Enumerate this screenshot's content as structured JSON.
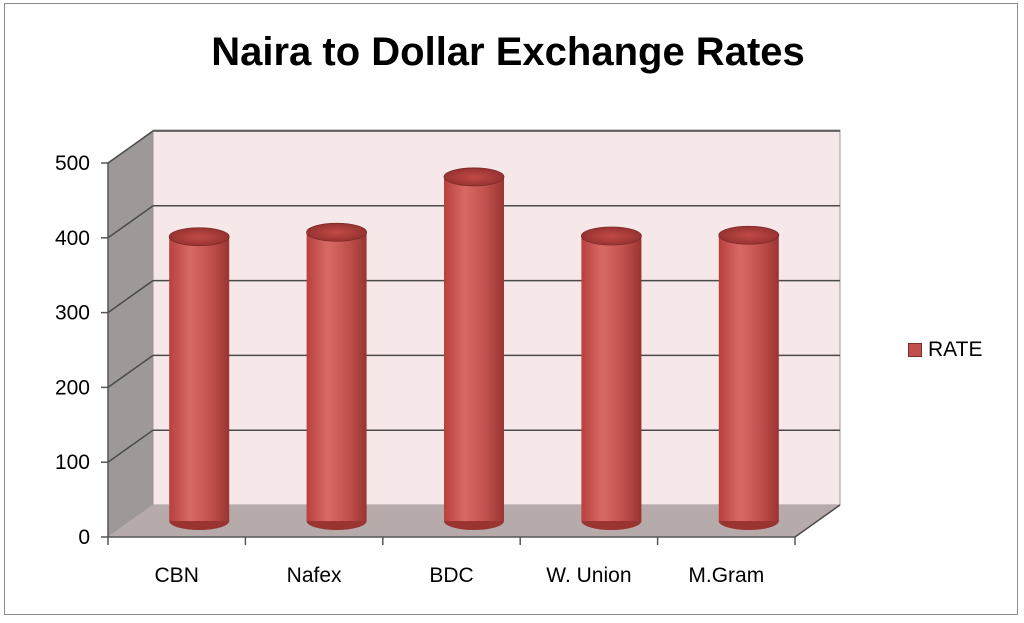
{
  "chart_data": {
    "type": "bar",
    "subtype": "3d-cylinder",
    "title": "Naira to Dollar Exchange Rates",
    "xlabel": "",
    "ylabel": "",
    "categories": [
      "CBN",
      "Nafex",
      "BDC",
      "W. Union",
      "M.Gram"
    ],
    "series": [
      {
        "name": "RATE",
        "values": [
          380,
          386,
          460,
          381,
          382
        ]
      }
    ],
    "ylim": [
      0,
      500
    ],
    "yticks": [
      0,
      100,
      200,
      300,
      400,
      500
    ],
    "grid": true,
    "legend": "right",
    "colors": {
      "bar": "#c0504d",
      "bar_dark": "#8e2e2c",
      "back_wall": "#f5e6e8",
      "side_wall": "#9a9494",
      "floor": "#b5aaaa"
    }
  }
}
